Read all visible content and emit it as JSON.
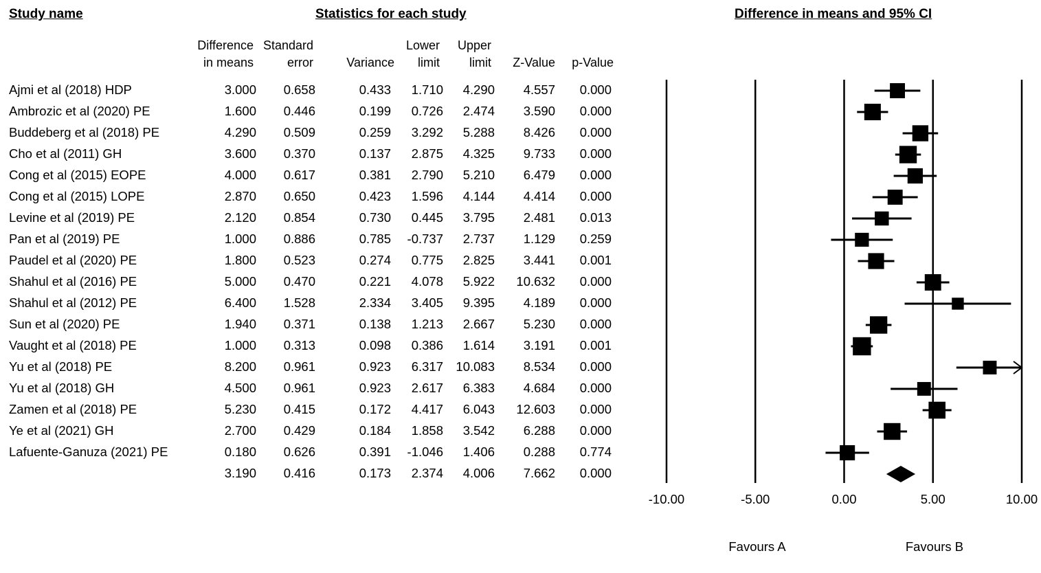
{
  "headers": {
    "study": "Study name",
    "stats": "Statistics for each study",
    "plot": "Difference in means and 95% CI"
  },
  "columns": [
    {
      "key": "diff",
      "label": "Difference\nin means"
    },
    {
      "key": "se",
      "label": "Standard\nerror"
    },
    {
      "key": "var",
      "label": "Variance"
    },
    {
      "key": "lower",
      "label": "Lower\nlimit"
    },
    {
      "key": "upper",
      "label": "Upper\nlimit"
    },
    {
      "key": "z",
      "label": "Z-Value"
    },
    {
      "key": "p",
      "label": "p-Value"
    }
  ],
  "rows": [
    {
      "name": "Ajmi et al (2018) HDP",
      "diff": "3.000",
      "se": "0.658",
      "var": "0.433",
      "lower": "1.710",
      "upper": "4.290",
      "z": "4.557",
      "p": "0.000"
    },
    {
      "name": "Ambrozic et al (2020) PE",
      "diff": "1.600",
      "se": "0.446",
      "var": "0.199",
      "lower": "0.726",
      "upper": "2.474",
      "z": "3.590",
      "p": "0.000"
    },
    {
      "name": "Buddeberg et al (2018) PE",
      "diff": "4.290",
      "se": "0.509",
      "var": "0.259",
      "lower": "3.292",
      "upper": "5.288",
      "z": "8.426",
      "p": "0.000"
    },
    {
      "name": "Cho et al (2011) GH",
      "diff": "3.600",
      "se": "0.370",
      "var": "0.137",
      "lower": "2.875",
      "upper": "4.325",
      "z": "9.733",
      "p": "0.000"
    },
    {
      "name": "Cong et al (2015) EOPE",
      "diff": "4.000",
      "se": "0.617",
      "var": "0.381",
      "lower": "2.790",
      "upper": "5.210",
      "z": "6.479",
      "p": "0.000"
    },
    {
      "name": "Cong et al (2015) LOPE",
      "diff": "2.870",
      "se": "0.650",
      "var": "0.423",
      "lower": "1.596",
      "upper": "4.144",
      "z": "4.414",
      "p": "0.000"
    },
    {
      "name": "Levine et al (2019) PE",
      "diff": "2.120",
      "se": "0.854",
      "var": "0.730",
      "lower": "0.445",
      "upper": "3.795",
      "z": "2.481",
      "p": "0.013"
    },
    {
      "name": "Pan et al (2019) PE",
      "diff": "1.000",
      "se": "0.886",
      "var": "0.785",
      "lower": "-0.737",
      "upper": "2.737",
      "z": "1.129",
      "p": "0.259"
    },
    {
      "name": "Paudel et al (2020) PE",
      "diff": "1.800",
      "se": "0.523",
      "var": "0.274",
      "lower": "0.775",
      "upper": "2.825",
      "z": "3.441",
      "p": "0.001"
    },
    {
      "name": "Shahul et al (2016) PE",
      "diff": "5.000",
      "se": "0.470",
      "var": "0.221",
      "lower": "4.078",
      "upper": "5.922",
      "z": "10.632",
      "p": "0.000"
    },
    {
      "name": "Shahul et al (2012) PE",
      "diff": "6.400",
      "se": "1.528",
      "var": "2.334",
      "lower": "3.405",
      "upper": "9.395",
      "z": "4.189",
      "p": "0.000"
    },
    {
      "name": "Sun et al (2020) PE",
      "diff": "1.940",
      "se": "0.371",
      "var": "0.138",
      "lower": "1.213",
      "upper": "2.667",
      "z": "5.230",
      "p": "0.000"
    },
    {
      "name": "Vaught et al (2018) PE",
      "diff": "1.000",
      "se": "0.313",
      "var": "0.098",
      "lower": "0.386",
      "upper": "1.614",
      "z": "3.191",
      "p": "0.001"
    },
    {
      "name": "Yu et al (2018) PE",
      "diff": "8.200",
      "se": "0.961",
      "var": "0.923",
      "lower": "6.317",
      "upper": "10.083",
      "z": "8.534",
      "p": "0.000"
    },
    {
      "name": "Yu et al (2018) GH",
      "diff": "4.500",
      "se": "0.961",
      "var": "0.923",
      "lower": "2.617",
      "upper": "6.383",
      "z": "4.684",
      "p": "0.000"
    },
    {
      "name": "Zamen et al (2018) PE",
      "diff": "5.230",
      "se": "0.415",
      "var": "0.172",
      "lower": "4.417",
      "upper": "6.043",
      "z": "12.603",
      "p": "0.000"
    },
    {
      "name": "Ye et al (2021) GH",
      "diff": "2.700",
      "se": "0.429",
      "var": "0.184",
      "lower": "1.858",
      "upper": "3.542",
      "z": "6.288",
      "p": "0.000"
    },
    {
      "name": "Lafuente-Ganuza (2021) PE",
      "diff": "0.180",
      "se": "0.626",
      "var": "0.391",
      "lower": "-1.046",
      "upper": "1.406",
      "z": "0.288",
      "p": "0.774"
    }
  ],
  "summary": {
    "name": "",
    "diff": "3.190",
    "se": "0.416",
    "var": "0.173",
    "lower": "2.374",
    "upper": "4.006",
    "z": "7.662",
    "p": "0.000"
  },
  "favours": {
    "left": "Favours A",
    "right": "Favours B"
  },
  "chart_data": {
    "type": "forest",
    "title": "Difference in means and 95% CI",
    "xlim": [
      -10,
      10
    ],
    "xticks": [
      -10,
      -5,
      0,
      5,
      10
    ],
    "xtick_labels": [
      "-10.00",
      "-5.00",
      "0.00",
      "5.00",
      "10.00"
    ],
    "color": "#000000",
    "studies": [
      {
        "name": "Ajmi et al (2018) HDP",
        "estimate": 3.0,
        "lower": 1.71,
        "upper": 4.29,
        "weight_rel": 0.55
      },
      {
        "name": "Ambrozic et al (2020) PE",
        "estimate": 1.6,
        "lower": 0.726,
        "upper": 2.474,
        "weight_rel": 0.67
      },
      {
        "name": "Buddeberg et al (2018) PE",
        "estimate": 4.29,
        "lower": 3.292,
        "upper": 5.288,
        "weight_rel": 0.63
      },
      {
        "name": "Cho et al (2011) GH",
        "estimate": 3.6,
        "lower": 2.875,
        "upper": 4.325,
        "weight_rel": 0.74
      },
      {
        "name": "Cong et al (2015) EOPE",
        "estimate": 4.0,
        "lower": 2.79,
        "upper": 5.21,
        "weight_rel": 0.57
      },
      {
        "name": "Cong et al (2015) LOPE",
        "estimate": 2.87,
        "lower": 1.596,
        "upper": 4.144,
        "weight_rel": 0.55
      },
      {
        "name": "Levine et al (2019) PE",
        "estimate": 2.12,
        "lower": 0.445,
        "upper": 3.795,
        "weight_rel": 0.47
      },
      {
        "name": "Pan et al (2019) PE",
        "estimate": 1.0,
        "lower": -0.737,
        "upper": 2.737,
        "weight_rel": 0.46
      },
      {
        "name": "Paudel et al (2020) PE",
        "estimate": 1.8,
        "lower": 0.775,
        "upper": 2.825,
        "weight_rel": 0.62
      },
      {
        "name": "Shahul et al (2016) PE",
        "estimate": 5.0,
        "lower": 4.078,
        "upper": 5.922,
        "weight_rel": 0.66
      },
      {
        "name": "Shahul et al (2012) PE",
        "estimate": 6.4,
        "lower": 3.405,
        "upper": 9.395,
        "weight_rel": 0.3
      },
      {
        "name": "Sun et al (2020) PE",
        "estimate": 1.94,
        "lower": 1.213,
        "upper": 2.667,
        "weight_rel": 0.74
      },
      {
        "name": "Vaught et al (2018) PE",
        "estimate": 1.0,
        "lower": 0.386,
        "upper": 1.614,
        "weight_rel": 0.8
      },
      {
        "name": "Yu et al (2018) PE",
        "estimate": 8.2,
        "lower": 6.317,
        "upper": 10.083,
        "weight_rel": 0.44,
        "arrow_right": true
      },
      {
        "name": "Yu et al (2018) GH",
        "estimate": 4.5,
        "lower": 2.617,
        "upper": 6.383,
        "weight_rel": 0.44
      },
      {
        "name": "Zamen et al (2018) PE",
        "estimate": 5.23,
        "lower": 4.417,
        "upper": 6.043,
        "weight_rel": 0.7
      },
      {
        "name": "Ye et al (2021) GH",
        "estimate": 2.7,
        "lower": 1.858,
        "upper": 3.542,
        "weight_rel": 0.69
      },
      {
        "name": "Lafuente-Ganuza (2021) PE",
        "estimate": 0.18,
        "lower": -1.046,
        "upper": 1.406,
        "weight_rel": 0.56
      }
    ],
    "summary": {
      "estimate": 3.19,
      "lower": 2.374,
      "upper": 4.006
    }
  }
}
